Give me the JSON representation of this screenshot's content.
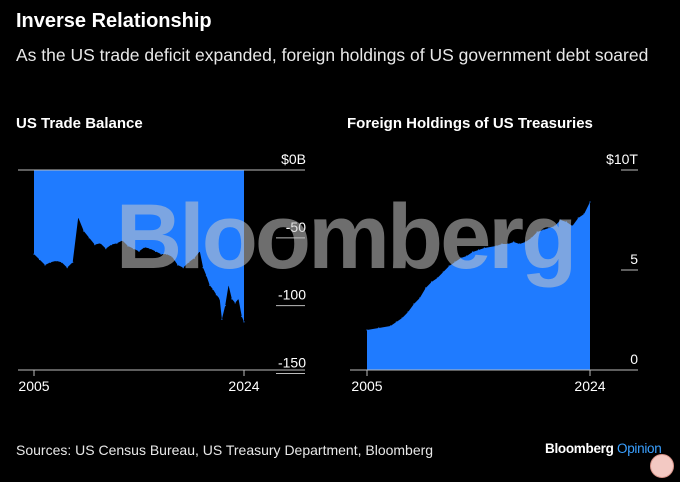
{
  "header": {
    "title": "Inverse Relationship",
    "subtitle": "As the US trade deficit expanded, foreign holdings of US government debt soared"
  },
  "chart_data": [
    {
      "type": "area",
      "title": "US Trade Balance",
      "unit": "$B",
      "color": "#1f7bff",
      "x_start": 2005,
      "x_end": 2024,
      "xticks": [
        "2005",
        "2024"
      ],
      "yticks": [
        {
          "value": 0,
          "label": "$0B"
        },
        {
          "value": -50,
          "label": "-50"
        },
        {
          "value": -100,
          "label": "-100"
        },
        {
          "value": -150,
          "label": "-150"
        }
      ],
      "ylim": [
        -160,
        0
      ],
      "x": [
        2005.0,
        2005.5,
        2006.0,
        2006.5,
        2007.0,
        2007.5,
        2008.0,
        2008.5,
        2009.0,
        2009.5,
        2010.0,
        2010.5,
        2011.0,
        2011.5,
        2012.0,
        2012.5,
        2013.0,
        2013.5,
        2014.0,
        2014.5,
        2015.0,
        2015.5,
        2016.0,
        2016.5,
        2017.0,
        2017.5,
        2018.0,
        2018.5,
        2019.0,
        2019.5,
        2020.0,
        2020.3,
        2020.6,
        2020.9,
        2021.2,
        2021.5,
        2021.8,
        2022.0,
        2022.3,
        2022.6,
        2022.9,
        2023.2,
        2023.5,
        2023.8,
        2024.0
      ],
      "values": [
        -62,
        -66,
        -70,
        -68,
        -67,
        -68,
        -72,
        -68,
        -35,
        -45,
        -50,
        -55,
        -54,
        -58,
        -55,
        -54,
        -52,
        -56,
        -58,
        -60,
        -57,
        -58,
        -60,
        -62,
        -62,
        -64,
        -70,
        -72,
        -68,
        -65,
        -60,
        -72,
        -78,
        -85,
        -88,
        -92,
        -95,
        -110,
        -100,
        -85,
        -95,
        -98,
        -95,
        -108,
        -112
      ]
    },
    {
      "type": "area",
      "title": "Foreign Holdings of US Treasuries",
      "unit": "$T",
      "color": "#1f7bff",
      "x_start": 2005,
      "x_end": 2024,
      "xticks": [
        "2005",
        "2024"
      ],
      "yticks": [
        {
          "value": 10,
          "label": "$10T"
        },
        {
          "value": 5,
          "label": "5"
        },
        {
          "value": 0,
          "label": "0"
        }
      ],
      "ylim": [
        0,
        10
      ],
      "x": [
        2005.0,
        2006.0,
        2007.0,
        2007.5,
        2008.0,
        2008.5,
        2009.0,
        2009.5,
        2010.0,
        2010.5,
        2011.0,
        2011.5,
        2012.0,
        2012.5,
        2013.0,
        2013.5,
        2014.0,
        2014.5,
        2015.0,
        2016.0,
        2016.5,
        2017.0,
        2017.5,
        2018.0,
        2018.5,
        2019.0,
        2019.5,
        2020.0,
        2020.5,
        2021.0,
        2021.5,
        2022.0,
        2022.5,
        2023.0,
        2023.5,
        2024.0
      ],
      "values": [
        2.0,
        2.1,
        2.2,
        2.4,
        2.6,
        2.9,
        3.3,
        3.6,
        4.1,
        4.4,
        4.6,
        4.9,
        5.2,
        5.4,
        5.6,
        5.7,
        5.9,
        6.0,
        6.1,
        6.2,
        6.3,
        6.3,
        6.4,
        6.3,
        6.4,
        6.6,
        6.9,
        7.0,
        7.1,
        7.2,
        7.5,
        7.4,
        7.2,
        7.6,
        7.8,
        8.4
      ]
    }
  ],
  "watermark": "Bloomberg",
  "footer": {
    "source": "Sources: US Census Bureau, US Treasury Department, Bloomberg",
    "brand_name": "Bloomberg",
    "brand_suffix": "Opinion"
  }
}
